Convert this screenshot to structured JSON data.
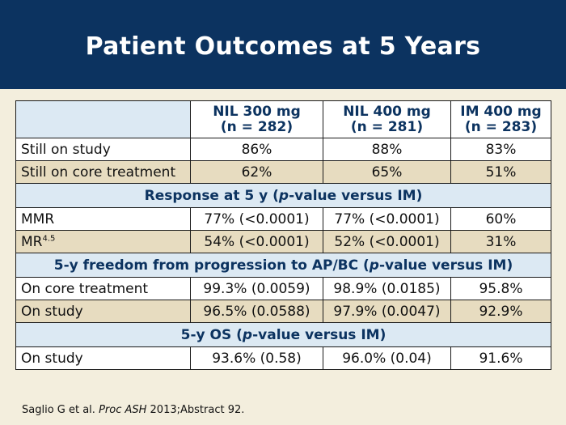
{
  "title": "Patient Outcomes at 5 Years",
  "table": {
    "columns": [
      {
        "line1": "NIL 300 mg",
        "line2": "(n = 282)"
      },
      {
        "line1": "NIL 400 mg",
        "line2": "(n = 281)"
      },
      {
        "line1": "IM 400 mg",
        "line2": "(n = 283)"
      }
    ],
    "rows_a": [
      {
        "label": "Still on study",
        "values": [
          "86%",
          "88%",
          "83%"
        ]
      },
      {
        "label": "Still on core treatment",
        "values": [
          "62%",
          "65%",
          "51%"
        ]
      }
    ],
    "section_response": {
      "pre": "Response at 5 y (",
      "italic": "p",
      "post": "-value versus IM)"
    },
    "rows_b": [
      {
        "label": "MMR",
        "values": [
          "77% (<0.0001)",
          "77% (<0.0001)",
          "60%"
        ]
      },
      {
        "label": "MR",
        "label_sup": "4.5",
        "values": [
          "54% (<0.0001)",
          "52% (<0.0001)",
          "31%"
        ]
      }
    ],
    "section_progression": {
      "pre": "5-y freedom from progression to AP/BC (",
      "italic": "p",
      "post": "-value versus IM)"
    },
    "rows_c": [
      {
        "label": "On core treatment",
        "values": [
          "99.3% (0.0059)",
          "98.9% (0.0185)",
          "95.8%"
        ]
      },
      {
        "label": "On study",
        "values": [
          "96.5% (0.0588)",
          "97.9% (0.0047)",
          "92.9%"
        ]
      }
    ],
    "section_os": {
      "pre": "5-y OS (",
      "italic": "p",
      "post": "-value versus IM)"
    },
    "rows_d": [
      {
        "label": "On study",
        "values": [
          "93.6% (0.58)",
          "96.0% (0.04)",
          "91.6%"
        ]
      }
    ]
  },
  "citation": {
    "pre": "Saglio G et al. ",
    "italic": "Proc ASH",
    "post": " 2013;Abstract 92."
  }
}
